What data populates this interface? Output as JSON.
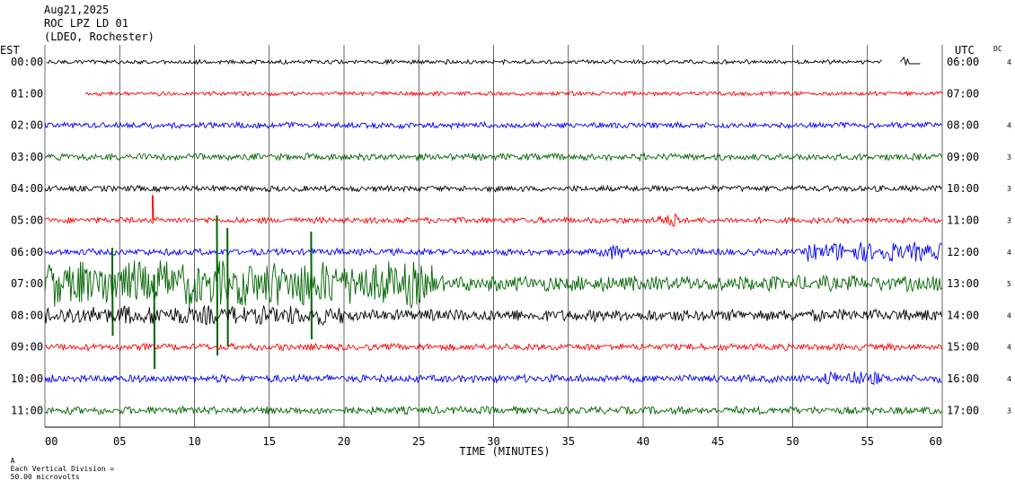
{
  "header": {
    "date": "Aug21,2025",
    "station": "ROC LPZ LD 01",
    "network": "(LDEO, Rochester)"
  },
  "footer": {
    "mark": "A",
    "division_note": "Each Vertical Division =",
    "division_value": "50.00 microvolts"
  },
  "chart_data": {
    "type": "line",
    "subtype": "helicorder",
    "title": "",
    "left_axis_title": "EST",
    "right_axis_title": "UTC",
    "dc_title": "DC",
    "xlabel": "TIME (MINUTES)",
    "xlim": [
      0,
      60
    ],
    "x_ticks": [
      "00",
      "05",
      "10",
      "15",
      "20",
      "25",
      "30",
      "35",
      "40",
      "45",
      "50",
      "55",
      "60"
    ],
    "grid": true,
    "colors": [
      "#000000",
      "#ff0000",
      "#0000ff",
      "#006400"
    ],
    "rows": [
      {
        "est": "00:00",
        "utc": "06:00",
        "dc": "4",
        "color": "#000000",
        "amp": 2.5,
        "start": 0.1,
        "end": 56.0
      },
      {
        "est": "01:00",
        "utc": "07:00",
        "dc": "",
        "color": "#ff0000",
        "amp": 2.5,
        "start": 2.7,
        "end": 60
      },
      {
        "est": "02:00",
        "utc": "08:00",
        "dc": "4",
        "color": "#0000ff",
        "amp": 3.5,
        "start": 0,
        "end": 60
      },
      {
        "est": "03:00",
        "utc": "09:00",
        "dc": "3",
        "color": "#006400",
        "amp": 4,
        "start": 0,
        "end": 60
      },
      {
        "est": "04:00",
        "utc": "10:00",
        "dc": "3",
        "color": "#000000",
        "amp": 3.5,
        "start": 0,
        "end": 60
      },
      {
        "est": "05:00",
        "utc": "11:00",
        "dc": "3",
        "color": "#ff0000",
        "amp": 3.5,
        "start": 0,
        "end": 60
      },
      {
        "est": "06:00",
        "utc": "12:00",
        "dc": "4",
        "color": "#0000ff",
        "amp": 4,
        "start": 0,
        "end": 60
      },
      {
        "est": "07:00",
        "utc": "13:00",
        "dc": "5",
        "color": "#006400",
        "amp": 9,
        "start": 0,
        "end": 60
      },
      {
        "est": "08:00",
        "utc": "14:00",
        "dc": "4",
        "color": "#000000",
        "amp": 7,
        "start": 0,
        "end": 60
      },
      {
        "est": "09:00",
        "utc": "15:00",
        "dc": "4",
        "color": "#ff0000",
        "amp": 4,
        "start": 0,
        "end": 60
      },
      {
        "est": "10:00",
        "utc": "16:00",
        "dc": "4",
        "color": "#0000ff",
        "amp": 4.5,
        "start": 0,
        "end": 60
      },
      {
        "est": "11:00",
        "utc": "17:00",
        "dc": "3",
        "color": "#006400",
        "amp": 4.5,
        "start": 0,
        "end": 60
      }
    ],
    "events": [
      {
        "row": 7,
        "from": 0,
        "to": 26,
        "boost": 3.0
      },
      {
        "row": 5,
        "from": 41,
        "to": 42.5,
        "boost": 2.5
      },
      {
        "row": 6,
        "from": 37,
        "to": 39,
        "boost": 2.2
      },
      {
        "row": 6,
        "from": 51,
        "to": 60,
        "boost": 2.8
      },
      {
        "row": 10,
        "from": 52,
        "to": 56,
        "boost": 2.0
      },
      {
        "row": 8,
        "from": 0,
        "to": 20,
        "boost": 1.6
      }
    ],
    "spikes": [
      {
        "row": 5,
        "x": 7.2,
        "up": 28,
        "down": 0
      },
      {
        "row": 7,
        "x": 7.3,
        "up": 10,
        "down": 95
      },
      {
        "row": 7,
        "x": 11.5,
        "up": 76,
        "down": 80
      },
      {
        "row": 7,
        "x": 12.2,
        "up": 62,
        "down": 70
      },
      {
        "row": 7,
        "x": 17.8,
        "up": 58,
        "down": 62
      },
      {
        "row": 7,
        "x": 4.5,
        "up": 40,
        "down": 58
      }
    ]
  }
}
